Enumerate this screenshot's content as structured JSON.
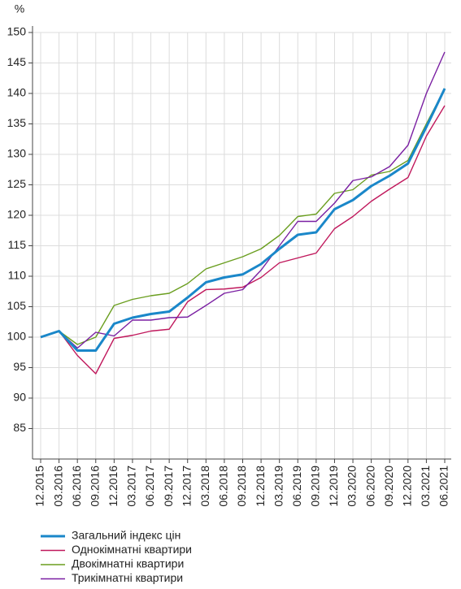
{
  "chart_data": {
    "type": "line",
    "y_label": "%",
    "categories": [
      "12.2015",
      "03.2016",
      "06.2016",
      "09.2016",
      "12.2016",
      "03.2017",
      "06.2017",
      "09.2017",
      "12.2017",
      "03.2018",
      "06.2018",
      "09.2018",
      "12.2018",
      "03.2019",
      "06.2019",
      "09.2019",
      "12.2019",
      "03.2020",
      "06.2020",
      "09.2020",
      "12.2020",
      "03.2021",
      "06.2021"
    ],
    "series": [
      {
        "name": "Загальний індекс цін",
        "color": "#1a87c9",
        "values": [
          100,
          101,
          97.8,
          97.8,
          102.2,
          103.2,
          103.8,
          104.2,
          106.5,
          109,
          109.8,
          110.3,
          112,
          114.5,
          116.8,
          117.2,
          121,
          122.5,
          124.8,
          126.5,
          128.5,
          134.5,
          140.8
        ]
      },
      {
        "name": "Однокімнатні квартири",
        "color": "#c0185c",
        "values": [
          100,
          101,
          97,
          94,
          99.8,
          100.3,
          101,
          101.3,
          105.8,
          107.8,
          107.9,
          108.2,
          109.8,
          112.2,
          113,
          113.8,
          117.8,
          119.8,
          122.3,
          124.3,
          126.2,
          133,
          138
        ]
      },
      {
        "name": "Двокімнатні квартири",
        "color": "#6a9e1f",
        "values": [
          100,
          101,
          98.8,
          100,
          105.2,
          106.2,
          106.8,
          107.2,
          108.8,
          111.2,
          112.2,
          113.2,
          114.5,
          116.7,
          119.8,
          120.2,
          123.6,
          124.2,
          126.6,
          127.2,
          129,
          135,
          140.8
        ]
      },
      {
        "name": "Трикімнатні квартири",
        "color": "#7a1fa2",
        "values": [
          100,
          101,
          98.2,
          100.8,
          100.2,
          102.8,
          102.8,
          103.2,
          103.3,
          105.2,
          107.2,
          107.8,
          111,
          115,
          119,
          119,
          122,
          125.7,
          126.3,
          128,
          131.5,
          140,
          146.8
        ]
      }
    ],
    "ylim": [
      80,
      150
    ],
    "yticks": [
      85,
      90,
      95,
      100,
      105,
      110,
      115,
      120,
      125,
      130,
      135,
      140,
      145,
      150
    ],
    "grid": true,
    "legend": "bottom"
  }
}
